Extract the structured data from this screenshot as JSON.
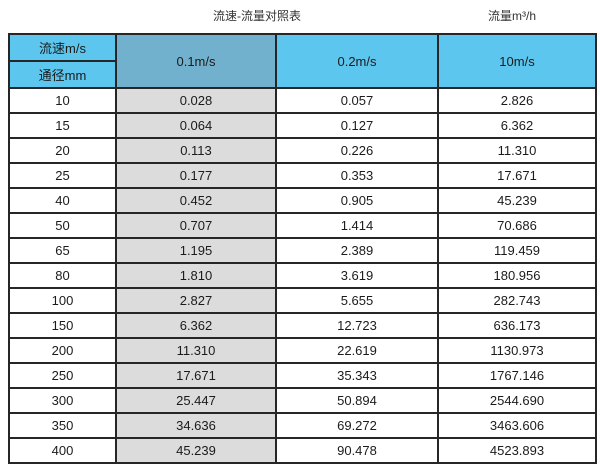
{
  "header": {
    "title": "流速-流量对照表",
    "unit_label": "流量m³/h"
  },
  "table": {
    "corner_top": "流速m/s",
    "corner_bottom": "通径mm",
    "columns": [
      "0.1m/s",
      "0.2m/s",
      "10m/s"
    ],
    "rows": [
      {
        "diameter": "10",
        "values": [
          "0.028",
          "0.057",
          "2.826"
        ]
      },
      {
        "diameter": "15",
        "values": [
          "0.064",
          "0.127",
          "6.362"
        ]
      },
      {
        "diameter": "20",
        "values": [
          "0.113",
          "0.226",
          "11.310"
        ]
      },
      {
        "diameter": "25",
        "values": [
          "0.177",
          "0.353",
          "17.671"
        ]
      },
      {
        "diameter": "40",
        "values": [
          "0.452",
          "0.905",
          "45.239"
        ]
      },
      {
        "diameter": "50",
        "values": [
          "0.707",
          "1.414",
          "70.686"
        ]
      },
      {
        "diameter": "65",
        "values": [
          "1.195",
          "2.389",
          "119.459"
        ]
      },
      {
        "diameter": "80",
        "values": [
          "1.810",
          "3.619",
          "180.956"
        ]
      },
      {
        "diameter": "100",
        "values": [
          "2.827",
          "5.655",
          "282.743"
        ]
      },
      {
        "diameter": "150",
        "values": [
          "6.362",
          "12.723",
          "636.173"
        ]
      },
      {
        "diameter": "200",
        "values": [
          "11.310",
          "22.619",
          "1130.973"
        ]
      },
      {
        "diameter": "250",
        "values": [
          "17.671",
          "35.343",
          "1767.146"
        ]
      },
      {
        "diameter": "300",
        "values": [
          "25.447",
          "50.894",
          "2544.690"
        ]
      },
      {
        "diameter": "350",
        "values": [
          "34.636",
          "69.272",
          "3463.606"
        ]
      },
      {
        "diameter": "400",
        "values": [
          "45.239",
          "90.478",
          "4523.893"
        ]
      }
    ]
  },
  "colors": {
    "header_blue": "#5cc6ee",
    "header_blue_muted": "#72b1ce",
    "stripe_gray": "#dcdcdc",
    "border": "#262626"
  },
  "chart_data": {
    "type": "table",
    "title": "流速-流量对照表",
    "unit": "流量m³/h",
    "row_header": "通径mm",
    "column_header": "流速m/s",
    "columns": [
      "0.1m/s",
      "0.2m/s",
      "10m/s"
    ],
    "diameters_mm": [
      10,
      15,
      20,
      25,
      40,
      50,
      65,
      80,
      100,
      150,
      200,
      250,
      300,
      350,
      400
    ],
    "series": [
      {
        "name": "0.1m/s",
        "values": [
          0.028,
          0.064,
          0.113,
          0.177,
          0.452,
          0.707,
          1.195,
          1.81,
          2.827,
          6.362,
          11.31,
          17.671,
          25.447,
          34.636,
          45.239
        ]
      },
      {
        "name": "0.2m/s",
        "values": [
          0.057,
          0.127,
          0.226,
          0.353,
          0.905,
          1.414,
          2.389,
          3.619,
          5.655,
          12.723,
          22.619,
          35.343,
          50.894,
          69.272,
          90.478
        ]
      },
      {
        "name": "10m/s",
        "values": [
          2.826,
          6.362,
          11.31,
          17.671,
          45.239,
          70.686,
          119.459,
          180.956,
          282.743,
          636.173,
          1130.973,
          1767.146,
          2544.69,
          3463.606,
          4523.893
        ]
      }
    ]
  }
}
